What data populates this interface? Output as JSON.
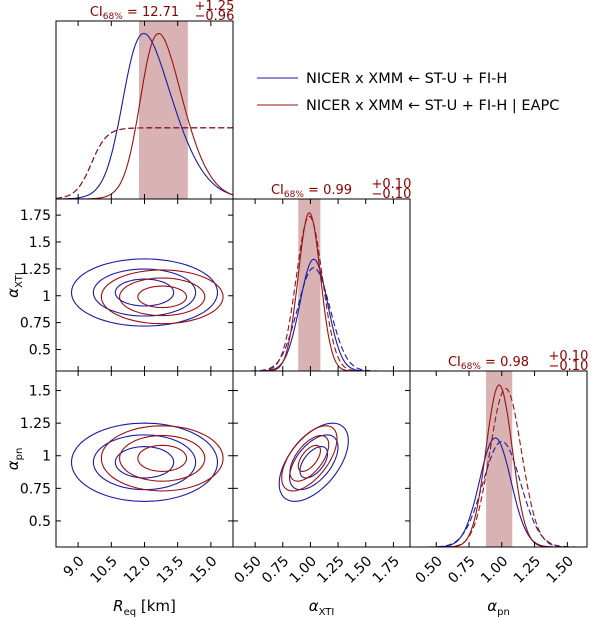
{
  "chart_data": {
    "type": "corner-plot",
    "parameters": [
      {
        "key": "req",
        "label": "R",
        "label_sub": "eq",
        "label_unit": " [km]",
        "range": [
          8.0,
          16.0
        ],
        "ticks": [
          9.0,
          10.5,
          12.0,
          13.5,
          15.0
        ],
        "tick_labels": [
          "9.0",
          "10.5",
          "12.0",
          "13.5",
          "15.0"
        ]
      },
      {
        "key": "axti",
        "label": "α",
        "label_sub": "XTI",
        "label_unit": "",
        "range": [
          0.3,
          1.9
        ],
        "ticks": [
          0.5,
          0.75,
          1.0,
          1.25,
          1.5,
          1.75
        ],
        "tick_labels": [
          "0.50",
          "0.75",
          "1.00",
          "1.25",
          "1.50",
          "1.75"
        ],
        "ytick_labels": [
          "0.5",
          "0.75",
          "1",
          "1.25",
          "1.5",
          "1.75"
        ]
      },
      {
        "key": "apn",
        "label": "α",
        "label_sub": "pn",
        "label_unit": "",
        "range": [
          0.3,
          1.65
        ],
        "ticks": [
          0.5,
          0.75,
          1.0,
          1.25,
          1.5
        ],
        "tick_labels": [
          "0.50",
          "0.75",
          "1.00",
          "1.25",
          "1.50"
        ],
        "ytick_labels": [
          "0.5",
          "0.75",
          "1",
          "1.25",
          "1.5"
        ]
      }
    ],
    "credible_intervals": [
      {
        "param": "req",
        "prefix": "CI",
        "sub": "68%",
        "value": "12.71",
        "plus": "+1.25",
        "minus": "−0.96",
        "low": 11.75,
        "high": 13.96
      },
      {
        "param": "axti",
        "prefix": "CI",
        "sub": "68%",
        "value": "0.99",
        "plus": "+0.10",
        "minus": "−0.10",
        "low": 0.89,
        "high": 1.09
      },
      {
        "param": "apn",
        "prefix": "CI",
        "sub": "68%",
        "value": "0.98",
        "plus": "+0.10",
        "minus": "−0.10",
        "low": 0.88,
        "high": 1.08
      }
    ],
    "series": [
      {
        "name": "NICER x XMM ← ST-U + FI-H",
        "color": "#1a1aa6",
        "means": {
          "req": 12.0,
          "axti": 1.03,
          "apn": 0.95
        },
        "sigmas": {
          "req": 1.2,
          "axti": 0.125,
          "apn": 0.12
        },
        "rho": {
          "req_axti": 0.0,
          "req_apn": 0.0,
          "axti_apn": 0.55
        },
        "req_skew": 2.2
      },
      {
        "name": "NICER x XMM ← ST-U + FI-H | EAPC",
        "color": "#9b1111",
        "means": {
          "req": 12.8,
          "axti": 0.99,
          "apn": 0.98
        },
        "sigmas": {
          "req": 1.0,
          "axti": 0.1,
          "apn": 0.1
        },
        "rho": {
          "req_axti": 0.0,
          "req_apn": 0.0,
          "axti_apn": 0.6
        },
        "req_skew": 2.0
      }
    ],
    "prior_curves": "dashed",
    "legend_position": "upper-right",
    "grid": false
  }
}
